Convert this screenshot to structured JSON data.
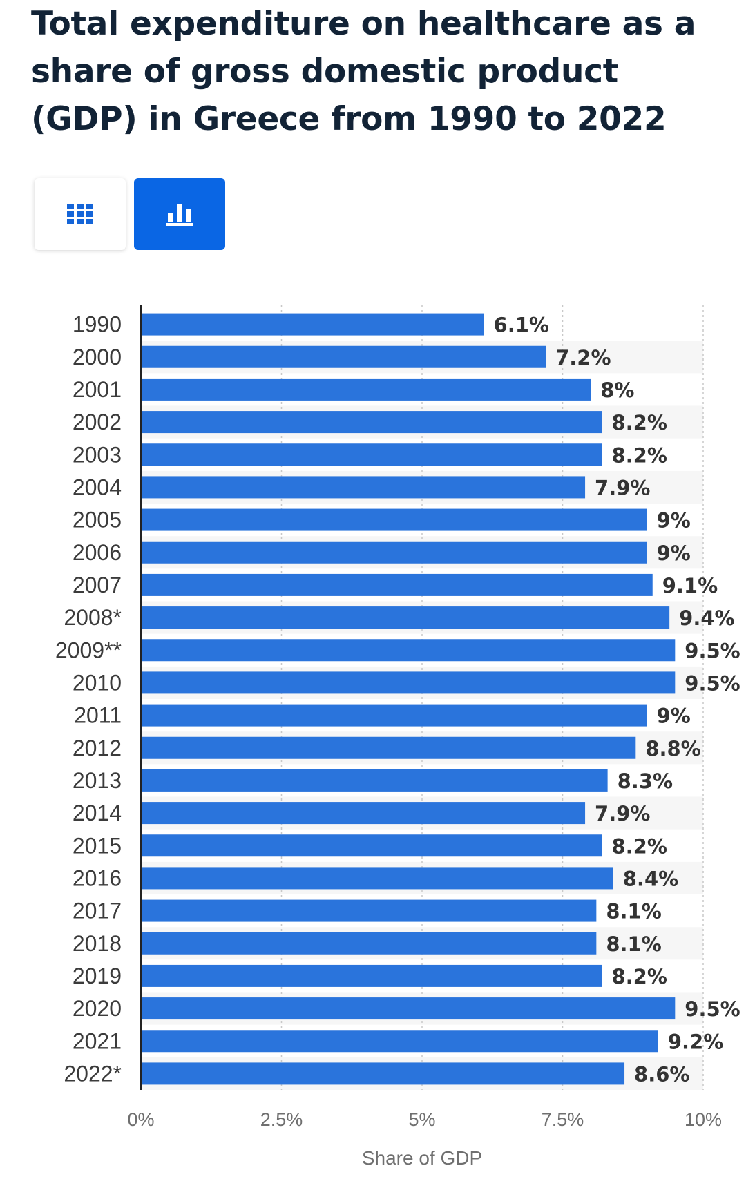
{
  "header": {
    "title": "Total expenditure on healthcare as a share of gross domestic product (GDP) in Greece from 1990 to 2022"
  },
  "view_toggle": {
    "table_icon": "grid-icon",
    "chart_icon": "bar-chart-icon",
    "active": "chart",
    "accent_color": "#0a66e4"
  },
  "chart_data": {
    "type": "bar",
    "orientation": "horizontal",
    "title": "Total expenditure on healthcare as a share of gross domestic product (GDP) in Greece from 1990 to 2022",
    "xlabel": "Share of GDP",
    "ylabel": "",
    "categories": [
      "1990",
      "2000",
      "2001",
      "2002",
      "2003",
      "2004",
      "2005",
      "2006",
      "2007",
      "2008*",
      "2009**",
      "2010",
      "2011",
      "2012",
      "2013",
      "2014",
      "2015",
      "2016",
      "2017",
      "2018",
      "2019",
      "2020",
      "2021",
      "2022*"
    ],
    "values": [
      6.1,
      7.2,
      8,
      8.2,
      8.2,
      7.9,
      9,
      9,
      9.1,
      9.4,
      9.5,
      9.5,
      9,
      8.8,
      8.3,
      7.9,
      8.2,
      8.4,
      8.1,
      8.1,
      8.2,
      9.5,
      9.2,
      8.6
    ],
    "data_labels": [
      "6.1%",
      "7.2%",
      "8%",
      "8.2%",
      "8.2%",
      "7.9%",
      "9%",
      "9%",
      "9.1%",
      "9.4%",
      "9.5%",
      "9.5%",
      "9%",
      "8.8%",
      "8.3%",
      "7.9%",
      "8.2%",
      "8.4%",
      "8.1%",
      "8.1%",
      "8.2%",
      "9.5%",
      "9.2%",
      "8.6%"
    ],
    "xlim": [
      0,
      10
    ],
    "xticks": [
      0,
      2.5,
      5,
      7.5,
      10
    ],
    "xtick_labels": [
      "0%",
      "2.5%",
      "5%",
      "7.5%",
      "10%"
    ],
    "bar_color": "#2a74dc",
    "grid": true,
    "legend": "none"
  }
}
